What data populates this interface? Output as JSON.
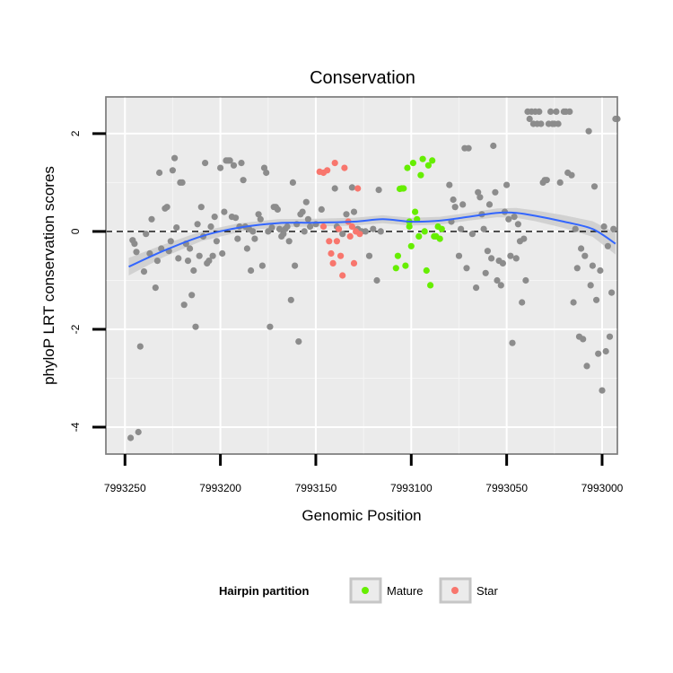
{
  "chart_data": {
    "type": "scatter",
    "title": "Conservation",
    "xlabel": "Genomic Position",
    "ylabel": "phyloP LRT conservation scores",
    "x_reversed": true,
    "xlim": [
      7993260,
      7992992
    ],
    "ylim": [
      -4.55,
      2.75
    ],
    "x_ticks": [
      7993250,
      7993200,
      7993150,
      7993100,
      7993050,
      7993000
    ],
    "x_tick_labels": [
      "7993250",
      "7993200",
      "7993150",
      "7993100",
      "7993050",
      "7993000"
    ],
    "y_ticks": [
      -4,
      -2,
      0,
      2
    ],
    "y_tick_labels": [
      "-4",
      "-2",
      "0",
      "2"
    ],
    "reference_line": {
      "y": 0,
      "style": "dashed"
    },
    "legend": {
      "title": "Hairpin partition",
      "position": "bottom",
      "entries": [
        {
          "label": "Mature",
          "color": "#66ee00"
        },
        {
          "label": "Star",
          "color": "#f8766d"
        }
      ]
    },
    "colors": {
      "Other": "#8c8c8c",
      "Mature": "#66ee00",
      "Star": "#f8766d",
      "smooth": "#3366ff",
      "ribbon": "#cccccc",
      "panel": "#ebebeb",
      "grid": "#ffffff"
    },
    "series": [
      {
        "name": "Other",
        "points": [
          [
            7993247,
            -4.22
          ],
          [
            7993243,
            -4.1
          ],
          [
            7993242,
            -2.35
          ],
          [
            7993246,
            -0.18
          ],
          [
            7993245,
            -0.25
          ],
          [
            7993244,
            -0.42
          ],
          [
            7993240,
            -0.82
          ],
          [
            7993239,
            -0.05
          ],
          [
            7993237,
            -0.45
          ],
          [
            7993236,
            0.25
          ],
          [
            7993234,
            -1.15
          ],
          [
            7993233,
            -0.6
          ],
          [
            7993232,
            1.2
          ],
          [
            7993231,
            -0.35
          ],
          [
            7993229,
            0.47
          ],
          [
            7993228,
            0.5
          ],
          [
            7993227,
            -0.4
          ],
          [
            7993226,
            -0.2
          ],
          [
            7993225,
            1.25
          ],
          [
            7993224,
            1.5
          ],
          [
            7993223,
            0.08
          ],
          [
            7993222,
            -0.55
          ],
          [
            7993221,
            1.0
          ],
          [
            7993220,
            1.0
          ],
          [
            7993219,
            -1.5
          ],
          [
            7993218,
            -0.25
          ],
          [
            7993217,
            -0.6
          ],
          [
            7993216,
            -0.35
          ],
          [
            7993215,
            -1.3
          ],
          [
            7993214,
            -0.8
          ],
          [
            7993213,
            -1.95
          ],
          [
            7993212,
            0.15
          ],
          [
            7993211,
            -0.5
          ],
          [
            7993210,
            0.5
          ],
          [
            7993209,
            -0.1
          ],
          [
            7993208,
            1.4
          ],
          [
            7993207,
            -0.65
          ],
          [
            7993206,
            -0.6
          ],
          [
            7993205,
            0.1
          ],
          [
            7993204,
            -0.5
          ],
          [
            7993203,
            0.3
          ],
          [
            7993202,
            -0.2
          ],
          [
            7993200,
            1.3
          ],
          [
            7993199,
            -0.45
          ],
          [
            7993198,
            0.4
          ],
          [
            7993197,
            1.45
          ],
          [
            7993196,
            1.45
          ],
          [
            7993195,
            1.45
          ],
          [
            7993194,
            0.3
          ],
          [
            7993193,
            1.35
          ],
          [
            7993192,
            0.28
          ],
          [
            7993191,
            -0.15
          ],
          [
            7993190,
            0.1
          ],
          [
            7993189,
            1.4
          ],
          [
            7993188,
            1.05
          ],
          [
            7993187,
            0.1
          ],
          [
            7993186,
            -0.35
          ],
          [
            7993185,
            0.05
          ],
          [
            7993184,
            -0.8
          ],
          [
            7993183,
            0.0
          ],
          [
            7993182,
            -0.15
          ],
          [
            7993180,
            0.35
          ],
          [
            7993179,
            0.25
          ],
          [
            7993178,
            -0.7
          ],
          [
            7993177,
            1.3
          ],
          [
            7993176,
            1.2
          ],
          [
            7993175,
            0.0
          ],
          [
            7993174,
            -1.95
          ],
          [
            7993173,
            0.08
          ],
          [
            7993172,
            0.5
          ],
          [
            7993171,
            0.5
          ],
          [
            7993170,
            0.45
          ],
          [
            7993169,
            0.05
          ],
          [
            7993168,
            -0.1
          ],
          [
            7993167,
            -0.05
          ],
          [
            7993166,
            0.05
          ],
          [
            7993165,
            0.1
          ],
          [
            7993164,
            -0.2
          ],
          [
            7993163,
            -1.4
          ],
          [
            7993162,
            1.0
          ],
          [
            7993161,
            -0.7
          ],
          [
            7993160,
            0.15
          ],
          [
            7993159,
            -2.25
          ],
          [
            7993158,
            0.35
          ],
          [
            7993157,
            0.4
          ],
          [
            7993156,
            0.0
          ],
          [
            7993155,
            0.6
          ],
          [
            7993154,
            0.25
          ],
          [
            7993153,
            0.1
          ],
          [
            7993150,
            0.15
          ],
          [
            7993147,
            0.45
          ],
          [
            7993140,
            0.88
          ],
          [
            7993139,
            0.1
          ],
          [
            7993136,
            -0.05
          ],
          [
            7993134,
            0.35
          ],
          [
            7993131,
            0.9
          ],
          [
            7993130,
            0.4
          ],
          [
            7993128,
            0.05
          ],
          [
            7993126,
            0.0
          ],
          [
            7993124,
            0.0
          ],
          [
            7993122,
            -0.5
          ],
          [
            7993120,
            0.05
          ],
          [
            7993118,
            -1.0
          ],
          [
            7993117,
            0.85
          ],
          [
            7993116,
            0.0
          ],
          [
            7993080,
            0.95
          ],
          [
            7993079,
            0.2
          ],
          [
            7993078,
            0.65
          ],
          [
            7993077,
            0.5
          ],
          [
            7993075,
            -0.5
          ],
          [
            7993074,
            0.05
          ],
          [
            7993073,
            0.55
          ],
          [
            7993072,
            1.7
          ],
          [
            7993071,
            -0.75
          ],
          [
            7993070,
            1.7
          ],
          [
            7993068,
            -0.05
          ],
          [
            7993066,
            -1.15
          ],
          [
            7993065,
            0.8
          ],
          [
            7993064,
            0.7
          ],
          [
            7993063,
            0.35
          ],
          [
            7993062,
            0.05
          ],
          [
            7993061,
            -0.85
          ],
          [
            7993060,
            -0.4
          ],
          [
            7993059,
            0.55
          ],
          [
            7993058,
            -0.55
          ],
          [
            7993057,
            1.75
          ],
          [
            7993056,
            0.8
          ],
          [
            7993055,
            -1.0
          ],
          [
            7993054,
            -0.6
          ],
          [
            7993053,
            -1.1
          ],
          [
            7993052,
            -0.65
          ],
          [
            7993051,
            0.4
          ],
          [
            7993050,
            0.95
          ],
          [
            7993049,
            0.25
          ],
          [
            7993048,
            -0.5
          ],
          [
            7993047,
            -2.28
          ],
          [
            7993046,
            0.3
          ],
          [
            7993045,
            -0.55
          ],
          [
            7993044,
            0.15
          ],
          [
            7993043,
            -0.2
          ],
          [
            7993042,
            -1.45
          ],
          [
            7993041,
            -0.15
          ],
          [
            7993040,
            -1.0
          ],
          [
            7993039,
            2.45
          ],
          [
            7993038,
            2.3
          ],
          [
            7993037,
            2.45
          ],
          [
            7993036,
            2.2
          ],
          [
            7993035,
            2.45
          ],
          [
            7993034,
            2.2
          ],
          [
            7993033,
            2.45
          ],
          [
            7993032,
            2.2
          ],
          [
            7993031,
            1.0
          ],
          [
            7993030,
            1.05
          ],
          [
            7993029,
            1.05
          ],
          [
            7993028,
            2.2
          ],
          [
            7993027,
            2.45
          ],
          [
            7993026,
            2.2
          ],
          [
            7993025,
            2.2
          ],
          [
            7993024,
            2.45
          ],
          [
            7993023,
            2.2
          ],
          [
            7993022,
            1.0
          ],
          [
            7993020,
            2.45
          ],
          [
            7993019,
            2.45
          ],
          [
            7993018,
            1.2
          ],
          [
            7993017,
            2.45
          ],
          [
            7993016,
            1.15
          ],
          [
            7993015,
            -1.45
          ],
          [
            7993014,
            0.05
          ],
          [
            7993013,
            -0.75
          ],
          [
            7993012,
            -2.15
          ],
          [
            7993011,
            -0.35
          ],
          [
            7993010,
            -2.2
          ],
          [
            7993009,
            -0.5
          ],
          [
            7993008,
            -2.75
          ],
          [
            7993007,
            2.05
          ],
          [
            7993006,
            -1.1
          ],
          [
            7993005,
            -0.7
          ],
          [
            7993004,
            0.92
          ],
          [
            7993003,
            -1.4
          ],
          [
            7993002,
            -2.5
          ],
          [
            7993001,
            -0.8
          ],
          [
            7993000,
            -3.25
          ],
          [
            7992999,
            0.1
          ],
          [
            7992998,
            -2.45
          ],
          [
            7992997,
            -0.3
          ],
          [
            7992996,
            -2.15
          ],
          [
            7992995,
            -1.25
          ],
          [
            7992994,
            0.05
          ],
          [
            7992993,
            2.3
          ],
          [
            7992992,
            2.3
          ]
        ]
      },
      {
        "name": "Mature",
        "points": [
          [
            7993106,
            0.87
          ],
          [
            7993105,
            0.88
          ],
          [
            7993104,
            0.88
          ],
          [
            7993103,
            -0.7
          ],
          [
            7993102,
            1.3
          ],
          [
            7993101,
            0.1
          ],
          [
            7993100,
            -0.3
          ],
          [
            7993099,
            1.4
          ],
          [
            7993098,
            0.4
          ],
          [
            7993097,
            0.25
          ],
          [
            7993096,
            -0.1
          ],
          [
            7993095,
            1.15
          ],
          [
            7993094,
            1.48
          ],
          [
            7993093,
            0.0
          ],
          [
            7993092,
            -0.8
          ],
          [
            7993091,
            1.35
          ],
          [
            7993090,
            -1.1
          ],
          [
            7993089,
            1.45
          ],
          [
            7993088,
            -0.1
          ],
          [
            7993087,
            -0.1
          ],
          [
            7993086,
            0.1
          ],
          [
            7993085,
            -0.15
          ],
          [
            7993084,
            0.05
          ],
          [
            7993101,
            0.2
          ],
          [
            7993107,
            -0.5
          ],
          [
            7993108,
            -0.75
          ]
        ]
      },
      {
        "name": "Star",
        "points": [
          [
            7993148,
            1.22
          ],
          [
            7993146,
            1.2
          ],
          [
            7993144,
            1.25
          ],
          [
            7993143,
            -0.2
          ],
          [
            7993142,
            -0.45
          ],
          [
            7993141,
            -0.65
          ],
          [
            7993140,
            1.4
          ],
          [
            7993139,
            -0.2
          ],
          [
            7993138,
            0.05
          ],
          [
            7993137,
            -0.5
          ],
          [
            7993136,
            -0.9
          ],
          [
            7993135,
            1.3
          ],
          [
            7993133,
            0.2
          ],
          [
            7993132,
            -0.1
          ],
          [
            7993130,
            -0.65
          ],
          [
            7993129,
            0.0
          ],
          [
            7993128,
            0.88
          ],
          [
            7993127,
            -0.05
          ],
          [
            7993146,
            0.1
          ],
          [
            7993131,
            0.1
          ]
        ]
      }
    ],
    "smooth": {
      "x": [
        7993248,
        7993230,
        7993210,
        7993190,
        7993170,
        7993150,
        7993130,
        7993115,
        7993100,
        7993085,
        7993070,
        7993055,
        7993045,
        7993035,
        7993020,
        7993005,
        7992993
      ],
      "y": [
        -0.72,
        -0.4,
        -0.1,
        0.08,
        0.17,
        0.18,
        0.2,
        0.25,
        0.2,
        0.22,
        0.3,
        0.38,
        0.38,
        0.32,
        0.2,
        0.05,
        -0.25
      ],
      "se": [
        0.18,
        0.13,
        0.1,
        0.09,
        0.08,
        0.08,
        0.08,
        0.08,
        0.08,
        0.08,
        0.08,
        0.09,
        0.1,
        0.11,
        0.13,
        0.16,
        0.22
      ]
    }
  }
}
